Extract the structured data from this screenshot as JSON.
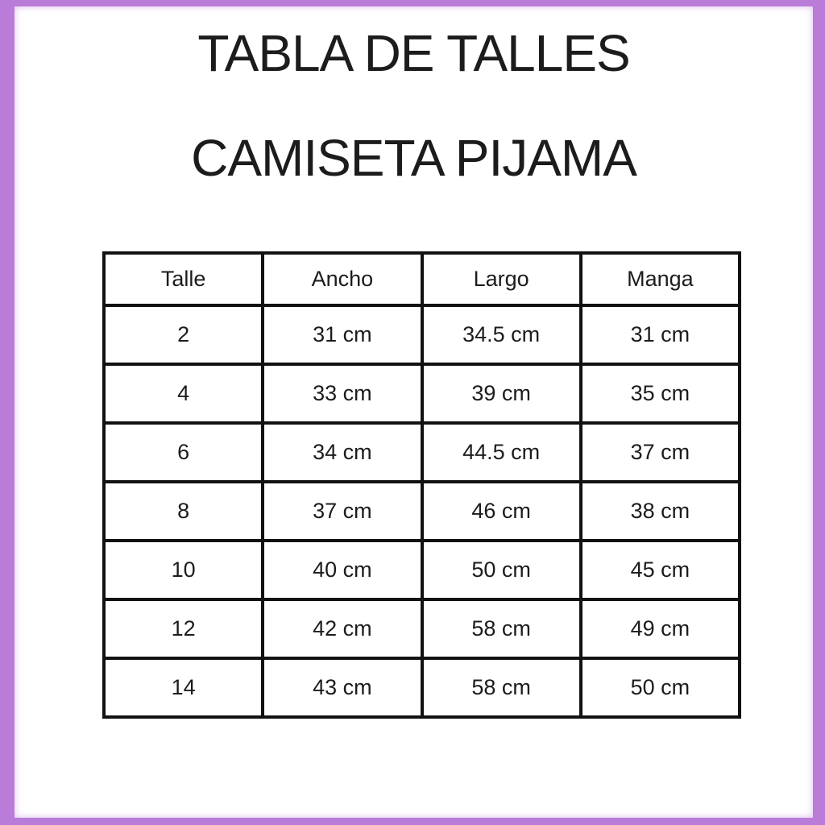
{
  "page": {
    "title_line1": "TABLA DE TALLES",
    "title_line2": "CAMISETA PIJAMA"
  },
  "colors": {
    "frame_border": "#b97cd9",
    "table_border": "#121212",
    "text": "#1c1c1c",
    "background": "#ffffff"
  },
  "chart_data": {
    "type": "table",
    "title": "TABLA DE TALLES",
    "subtitle": "CAMISETA PIJAMA",
    "columns": [
      "Talle",
      "Ancho",
      "Largo",
      "Manga"
    ],
    "rows": [
      [
        "2",
        "31 cm",
        "34.5 cm",
        "31 cm"
      ],
      [
        "4",
        "33 cm",
        "39 cm",
        "35 cm"
      ],
      [
        "6",
        "34 cm",
        "44.5 cm",
        "37 cm"
      ],
      [
        "8",
        "37 cm",
        "46 cm",
        "38 cm"
      ],
      [
        "10",
        "40 cm",
        "50 cm",
        "45 cm"
      ],
      [
        "12",
        "42 cm",
        "58 cm",
        "49 cm"
      ],
      [
        "14",
        "43 cm",
        "58 cm",
        "50 cm"
      ]
    ],
    "layout": {
      "grid": "all-borders",
      "header_row": true,
      "units": "cm"
    }
  }
}
